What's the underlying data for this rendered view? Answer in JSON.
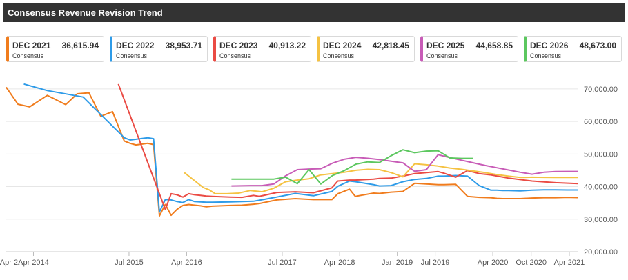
{
  "header": {
    "title": "Consensus Revenue Revision Trend"
  },
  "cards": [
    {
      "label": "DEC 2021",
      "value": "36,615.94",
      "sub": "Consensus",
      "color": "#f07c1d"
    },
    {
      "label": "DEC 2022",
      "value": "38,953.71",
      "sub": "Consensus",
      "color": "#2e9be8"
    },
    {
      "label": "DEC 2023",
      "value": "40,913.22",
      "sub": "Consensus",
      "color": "#ea4b44"
    },
    {
      "label": "DEC 2024",
      "value": "42,818.45",
      "sub": "Consensus",
      "color": "#f5c242"
    },
    {
      "label": "DEC 2025",
      "value": "44,658.85",
      "sub": "Consensus",
      "color": "#c85cb7"
    },
    {
      "label": "DEC 2026",
      "value": "48,673.00",
      "sub": "Consensus",
      "color": "#5cc75f"
    }
  ],
  "chart_data": {
    "type": "line",
    "title": "",
    "xlabel": "",
    "ylabel": "",
    "x_range": [
      "2013-11-22",
      "2021-05-14"
    ],
    "ylim": [
      20000,
      74000
    ],
    "y_ticks": [
      20000,
      30000,
      40000,
      50000,
      60000,
      70000
    ],
    "y_tick_labels": [
      "20,000.00",
      "30,000.00",
      "40,000.00",
      "50,000.00",
      "60,000.00",
      "70,000.00"
    ],
    "x_ticks": [
      "2013-12-20",
      "2014-04-01",
      "2015-07-01",
      "2016-04-01",
      "2017-07-01",
      "2018-04-01",
      "2019-01-01",
      "2019-07-01",
      "2020-04-01",
      "2020-10-01",
      "2021-04-01"
    ],
    "x_tick_labels": [
      "Apr 2...",
      "Apr 2014",
      "Jul 2015",
      "Apr 2016",
      "Jul 2017",
      "Apr 2018",
      "Jan 2019",
      "Jul 2019",
      "Apr 2020",
      "Oct 2020",
      "Apr 2021"
    ],
    "grid": true,
    "legend": "top cards",
    "series": [
      {
        "name": "DEC 2021",
        "color": "#f07c1d",
        "x": [
          "2013-11-22",
          "2014-01-17",
          "2014-03-14",
          "2014-06-06",
          "2014-09-02",
          "2014-10-27",
          "2014-12-22",
          "2015-02-16",
          "2015-04-13",
          "2015-06-08",
          "2015-07-06",
          "2015-08-03",
          "2015-09-28",
          "2015-10-26",
          "2015-11-23",
          "2015-12-21",
          "2016-01-18",
          "2016-02-15",
          "2016-03-14",
          "2016-04-11",
          "2016-05-09",
          "2016-06-06",
          "2016-07-04",
          "2016-08-01",
          "2016-10-26",
          "2016-12-21",
          "2017-02-14",
          "2017-03-14",
          "2017-06-05",
          "2017-09-01",
          "2017-11-27",
          "2018-02-23",
          "2018-03-23",
          "2018-05-18",
          "2018-06-15",
          "2018-09-10",
          "2018-10-08",
          "2018-12-03",
          "2019-01-28",
          "2019-03-25",
          "2019-05-20",
          "2019-07-15",
          "2019-08-12",
          "2019-10-07",
          "2019-12-02",
          "2020-01-27",
          "2020-03-23",
          "2020-04-20",
          "2020-05-18",
          "2020-06-15",
          "2020-08-10",
          "2020-10-05",
          "2020-11-30",
          "2021-01-25",
          "2021-03-22",
          "2021-05-14"
        ],
        "values": [
          70500,
          65300,
          64500,
          68000,
          65200,
          68500,
          68800,
          61600,
          63000,
          54000,
          53300,
          52800,
          53300,
          52900,
          31000,
          34500,
          31200,
          33000,
          34200,
          34500,
          34300,
          34100,
          33800,
          34000,
          34200,
          34300,
          34600,
          34800,
          35900,
          36300,
          36000,
          36000,
          37800,
          39200,
          37000,
          38000,
          37900,
          38300,
          38500,
          41000,
          40800,
          40600,
          40600,
          40700,
          37000,
          36700,
          36600,
          36400,
          36300,
          36300,
          36300,
          36500,
          36600,
          36600,
          36700,
          36616
        ]
      },
      {
        "name": "DEC 2022",
        "color": "#2e9be8",
        "x": [
          "2014-02-14",
          "2014-06-06",
          "2014-11-24",
          "2015-06-08",
          "2015-07-06",
          "2015-09-28",
          "2015-10-26",
          "2015-11-23",
          "2015-12-21",
          "2016-01-18",
          "2016-02-15",
          "2016-03-14",
          "2016-04-11",
          "2016-05-09",
          "2016-06-06",
          "2016-07-04",
          "2016-08-01",
          "2016-10-26",
          "2016-12-21",
          "2017-02-14",
          "2017-03-14",
          "2017-06-05",
          "2017-09-01",
          "2017-11-27",
          "2018-02-23",
          "2018-03-23",
          "2018-05-18",
          "2018-06-15",
          "2018-09-10",
          "2018-10-08",
          "2018-12-03",
          "2019-01-28",
          "2019-03-25",
          "2019-05-20",
          "2019-07-15",
          "2019-08-12",
          "2019-10-07",
          "2019-12-02",
          "2020-01-27",
          "2020-03-23",
          "2020-04-20",
          "2020-05-18",
          "2020-06-15",
          "2020-08-10",
          "2020-10-05",
          "2020-11-30",
          "2021-01-25",
          "2021-03-22",
          "2021-05-14"
        ],
        "values": [
          71500,
          69500,
          67500,
          55000,
          54300,
          55000,
          54700,
          32200,
          36000,
          35900,
          35400,
          35100,
          36000,
          35400,
          35300,
          35200,
          35200,
          35300,
          35400,
          35500,
          35800,
          36800,
          37900,
          37200,
          38500,
          40100,
          41700,
          41500,
          40600,
          40200,
          40300,
          41500,
          42200,
          42500,
          43200,
          43200,
          43400,
          43200,
          40300,
          38900,
          38900,
          38800,
          38800,
          38700,
          38900,
          39000,
          39000,
          38950,
          38954
        ]
      },
      {
        "name": "DEC 2023",
        "color": "#ea4b44",
        "x": [
          "2015-05-11",
          "2015-12-21",
          "2016-01-18",
          "2016-02-15",
          "2016-03-14",
          "2016-04-11",
          "2016-05-09",
          "2016-06-06",
          "2016-07-04",
          "2016-08-01",
          "2016-10-26",
          "2016-12-21",
          "2017-02-14",
          "2017-03-14",
          "2017-06-05",
          "2017-09-01",
          "2017-11-27",
          "2018-02-23",
          "2018-03-23",
          "2018-05-18",
          "2018-06-15",
          "2018-09-10",
          "2018-10-08",
          "2018-12-03",
          "2019-01-28",
          "2019-03-25",
          "2019-05-20",
          "2019-07-15",
          "2019-08-12",
          "2019-10-07",
          "2019-12-02",
          "2020-01-27",
          "2020-03-23",
          "2020-06-15",
          "2020-10-05",
          "2021-01-25",
          "2021-05-14"
        ],
        "values": [
          71500,
          33000,
          37800,
          37500,
          36800,
          37800,
          37500,
          37300,
          37100,
          37000,
          36800,
          36700,
          37300,
          37000,
          38200,
          38400,
          38100,
          39600,
          41700,
          42000,
          42000,
          42300,
          42500,
          42600,
          43200,
          44000,
          44300,
          44600,
          44100,
          42900,
          44900,
          44000,
          43600,
          42600,
          41700,
          41200,
          40913
        ]
      },
      {
        "name": "DEC 2024",
        "color": "#f5c242",
        "x": [
          "2016-03-21",
          "2016-06-20",
          "2016-07-18",
          "2016-08-15",
          "2016-10-10",
          "2016-12-05",
          "2017-01-30",
          "2017-03-27",
          "2017-05-22",
          "2017-07-17",
          "2017-09-11",
          "2017-11-06",
          "2018-01-01",
          "2018-02-26",
          "2018-04-23",
          "2018-06-18",
          "2018-08-13",
          "2018-10-08",
          "2018-12-03",
          "2019-01-28",
          "2019-03-25",
          "2019-05-20",
          "2019-07-15",
          "2019-09-09",
          "2019-11-04",
          "2019-12-30",
          "2020-02-24",
          "2020-04-20",
          "2020-06-15",
          "2020-08-10",
          "2020-10-05",
          "2020-11-30",
          "2021-01-25",
          "2021-03-22",
          "2021-05-14"
        ],
        "values": [
          44300,
          39700,
          39000,
          37800,
          37800,
          38000,
          38800,
          38400,
          39500,
          41500,
          42000,
          42400,
          43600,
          44000,
          44400,
          45000,
          45300,
          45200,
          44300,
          43000,
          47000,
          46700,
          46300,
          45700,
          45300,
          44800,
          44300,
          43700,
          43200,
          42800,
          42900,
          42850,
          42820,
          42818,
          42818
        ]
      },
      {
        "name": "DEC 2025",
        "color": "#c85cb7",
        "x": [
          "2016-11-01",
          "2017-01-30",
          "2017-03-27",
          "2017-05-22",
          "2017-07-17",
          "2017-09-11",
          "2017-11-06",
          "2018-01-01",
          "2018-02-26",
          "2018-04-23",
          "2018-06-18",
          "2018-08-13",
          "2018-10-08",
          "2018-12-03",
          "2019-01-28",
          "2019-03-25",
          "2019-05-20",
          "2019-07-15",
          "2019-09-09",
          "2019-11-04",
          "2019-12-30",
          "2020-02-24",
          "2020-04-20",
          "2020-06-15",
          "2020-08-10",
          "2020-10-05",
          "2020-11-30",
          "2021-01-25",
          "2021-03-22",
          "2021-05-14"
        ],
        "values": [
          40200,
          40300,
          40300,
          40800,
          43300,
          45200,
          45400,
          45500,
          47200,
          48400,
          49000,
          48700,
          48300,
          47800,
          47300,
          44700,
          45200,
          49800,
          48900,
          48100,
          47300,
          46500,
          45800,
          45100,
          44400,
          43800,
          44400,
          44600,
          44659,
          44659
        ]
      },
      {
        "name": "DEC 2026",
        "color": "#5cc75f",
        "x": [
          "2016-11-01",
          "2017-01-30",
          "2017-03-27",
          "2017-05-22",
          "2017-07-17",
          "2017-09-11",
          "2017-11-06",
          "2018-01-01",
          "2018-02-26",
          "2018-04-23",
          "2018-06-18",
          "2018-08-13",
          "2018-10-08",
          "2018-12-03",
          "2019-01-28",
          "2019-03-25",
          "2019-05-20",
          "2019-07-15",
          "2019-09-09",
          "2019-11-04",
          "2019-12-30"
        ],
        "values": [
          42300,
          42300,
          42300,
          42300,
          42900,
          40900,
          45200,
          40800,
          43400,
          44900,
          46900,
          47600,
          47400,
          49500,
          51300,
          50400,
          50900,
          51000,
          48800,
          48673,
          48673
        ]
      }
    ]
  }
}
